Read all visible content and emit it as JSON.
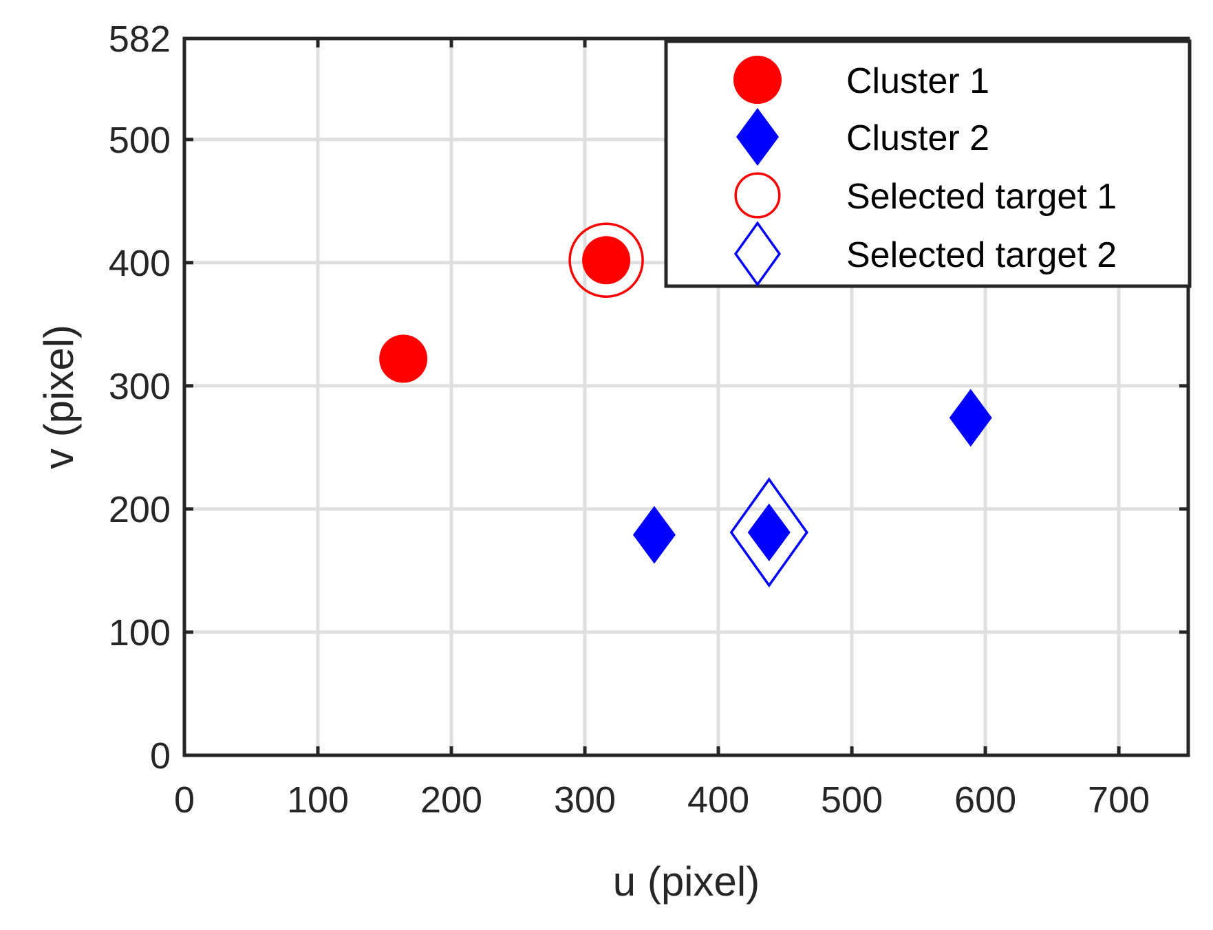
{
  "chart_data": {
    "type": "scatter",
    "title": "",
    "xlabel": "u (pixel)",
    "ylabel": "v (pixel)",
    "xlim": [
      0,
      752
    ],
    "ylim": [
      0,
      582
    ],
    "xticks": [
      0,
      100,
      200,
      300,
      400,
      500,
      600,
      700
    ],
    "yticks": [
      0,
      100,
      200,
      300,
      400,
      500,
      582
    ],
    "grid": true,
    "legend_position": "top-right",
    "series": [
      {
        "name": "Cluster 1",
        "marker": "filled-circle",
        "color": "#ff0000",
        "points": [
          {
            "x": 164,
            "y": 322
          },
          {
            "x": 316,
            "y": 402
          }
        ]
      },
      {
        "name": "Cluster 2",
        "marker": "filled-diamond",
        "color": "#0000ff",
        "points": [
          {
            "x": 352,
            "y": 179
          },
          {
            "x": 438,
            "y": 181
          },
          {
            "x": 589,
            "y": 274
          }
        ]
      },
      {
        "name": "Selected target 1",
        "marker": "open-circle",
        "color": "#ff0000",
        "points": [
          {
            "x": 316,
            "y": 402
          }
        ]
      },
      {
        "name": "Selected target 2",
        "marker": "open-diamond",
        "color": "#0000ff",
        "points": [
          {
            "x": 438,
            "y": 181
          }
        ]
      }
    ]
  }
}
